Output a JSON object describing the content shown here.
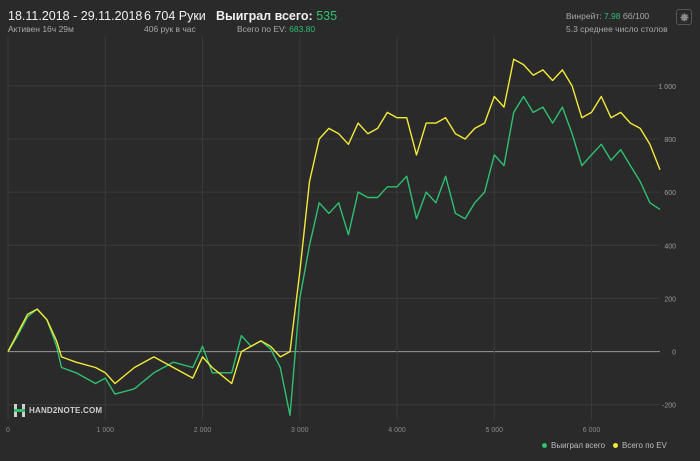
{
  "header": {
    "date_range": "18.11.2018 - 29.11.2018",
    "active": "Активен 16ч 29м",
    "hands": "6 704 Руки",
    "hands_per_hour": "406 рук в час",
    "won_label": "Выиграл всего:",
    "won_value": "535",
    "ev_label": "Всего по EV:",
    "ev_value": "683.80",
    "winrate_label": "Винрейт:",
    "winrate_value": "7.98",
    "winrate_unit": "бб/100",
    "avg_tables": "5.3 среднее число столов"
  },
  "logo": {
    "text": "HAND2NOTE.COM"
  },
  "colors": {
    "won": "#2fbf71",
    "ev": "#f2ea3a",
    "zero_line": "#9a9a9a",
    "grid": "#3a3a3a"
  },
  "chart_data": {
    "type": "line",
    "x_ticks": [
      "0",
      "1 000",
      "2 000",
      "3 000",
      "4 000",
      "5 000",
      "6 000"
    ],
    "x_tick_values": [
      0,
      1000,
      2000,
      3000,
      4000,
      5000,
      6000
    ],
    "y_ticks": [
      "-200",
      "0",
      "200",
      "400",
      "600",
      "800",
      "1 000"
    ],
    "y_tick_values": [
      -200,
      0,
      200,
      400,
      600,
      800,
      1000
    ],
    "xlim": [
      0,
      6704
    ],
    "ylim": [
      -250,
      1150
    ],
    "grid": true,
    "legend_position": "bottom-right",
    "series": [
      {
        "name": "Выиграл всего",
        "color": "#2fbf71",
        "x": [
          0,
          100,
          200,
          300,
          400,
          500,
          550,
          700,
          900,
          1000,
          1100,
          1300,
          1500,
          1700,
          1900,
          2000,
          2100,
          2300,
          2400,
          2500,
          2600,
          2700,
          2800,
          2900,
          3000,
          3100,
          3200,
          3300,
          3400,
          3500,
          3600,
          3700,
          3800,
          3900,
          4000,
          4100,
          4200,
          4300,
          4400,
          4500,
          4600,
          4700,
          4800,
          4900,
          5000,
          5100,
          5200,
          5300,
          5400,
          5500,
          5600,
          5700,
          5800,
          5900,
          6000,
          6100,
          6200,
          6300,
          6400,
          6500,
          6600,
          6704
        ],
        "y": [
          0,
          60,
          130,
          160,
          120,
          20,
          -60,
          -80,
          -120,
          -100,
          -160,
          -140,
          -80,
          -40,
          -60,
          20,
          -80,
          -80,
          60,
          20,
          40,
          10,
          -60,
          -240,
          200,
          400,
          560,
          520,
          560,
          440,
          600,
          580,
          580,
          620,
          620,
          660,
          500,
          600,
          560,
          660,
          520,
          500,
          560,
          600,
          740,
          700,
          900,
          960,
          900,
          920,
          860,
          920,
          820,
          700,
          740,
          780,
          720,
          760,
          700,
          640,
          560,
          535
        ]
      },
      {
        "name": "Всего по EV",
        "color": "#f2ea3a",
        "x": [
          0,
          100,
          200,
          300,
          400,
          500,
          550,
          700,
          900,
          1000,
          1100,
          1300,
          1500,
          1700,
          1900,
          2000,
          2100,
          2300,
          2400,
          2500,
          2600,
          2700,
          2800,
          2900,
          3000,
          3100,
          3200,
          3300,
          3400,
          3500,
          3600,
          3700,
          3800,
          3900,
          4000,
          4100,
          4200,
          4300,
          4400,
          4500,
          4600,
          4700,
          4800,
          4900,
          5000,
          5100,
          5200,
          5300,
          5400,
          5500,
          5600,
          5700,
          5800,
          5900,
          6000,
          6100,
          6200,
          6300,
          6400,
          6500,
          6600,
          6704
        ],
        "y": [
          0,
          70,
          140,
          160,
          120,
          40,
          -20,
          -40,
          -60,
          -80,
          -120,
          -60,
          -20,
          -60,
          -100,
          -20,
          -60,
          -120,
          0,
          20,
          40,
          20,
          -20,
          0,
          300,
          640,
          800,
          840,
          820,
          780,
          860,
          820,
          840,
          900,
          880,
          880,
          740,
          860,
          860,
          880,
          820,
          800,
          840,
          860,
          960,
          920,
          1100,
          1080,
          1040,
          1060,
          1020,
          1060,
          1000,
          880,
          900,
          960,
          880,
          900,
          860,
          840,
          780,
          684
        ]
      }
    ]
  }
}
